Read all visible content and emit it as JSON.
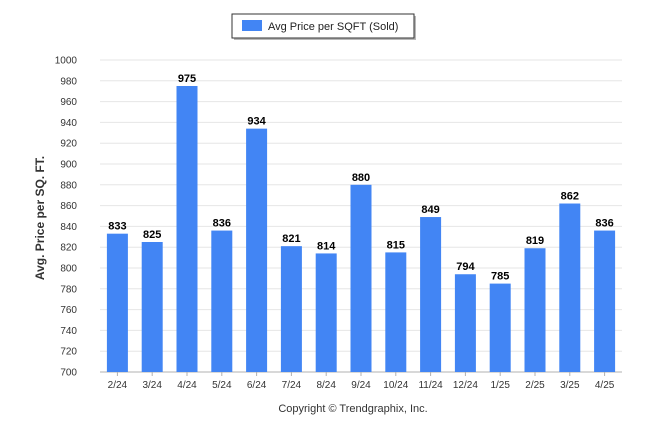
{
  "chart_data": {
    "type": "bar",
    "categories": [
      "2/24",
      "3/24",
      "4/24",
      "5/24",
      "6/24",
      "7/24",
      "8/24",
      "9/24",
      "10/24",
      "11/24",
      "12/24",
      "1/25",
      "2/25",
      "3/25",
      "4/25"
    ],
    "series": [
      {
        "name": "Avg Price per SQFT (Sold)",
        "values": [
          833,
          825,
          975,
          836,
          934,
          821,
          814,
          880,
          815,
          849,
          794,
          785,
          819,
          862,
          836
        ],
        "color": "#4285f4"
      }
    ],
    "data_labels": [
      "833",
      "825",
      "975",
      "836",
      "934",
      "821",
      "814",
      "880",
      "815",
      "849",
      "794",
      "785",
      "819",
      "862",
      "836"
    ],
    "title": "",
    "xlabel": "",
    "ylabel": "Avg. Price per SQ. FT.",
    "ylim": [
      700,
      1000
    ],
    "yticks": [
      700,
      720,
      740,
      760,
      780,
      800,
      820,
      840,
      860,
      880,
      900,
      920,
      940,
      960,
      980,
      1000
    ],
    "grid": true,
    "legend_position": "top-center"
  },
  "footer": {
    "copyright": "Copyright © Trendgraphix, Inc."
  }
}
